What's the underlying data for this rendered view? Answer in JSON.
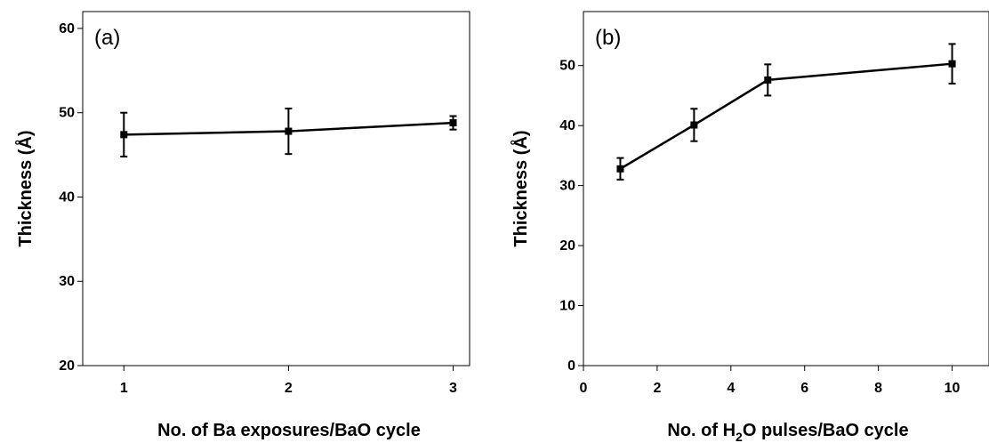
{
  "chart_data": [
    {
      "type": "line",
      "panel_label": "(a)",
      "xlabel": "No. of Ba exposures/BaO cycle",
      "ylabel": "Thickness (Å)",
      "xlim": [
        0.75,
        3.1
      ],
      "ylim": [
        20,
        62
      ],
      "xticks": [
        1,
        2,
        3
      ],
      "yticks": [
        20,
        30,
        40,
        50,
        60
      ],
      "grid": false,
      "series": [
        {
          "points": [
            {
              "x": 1,
              "y": 47.4,
              "err": 2.6
            },
            {
              "x": 2,
              "y": 47.8,
              "err": 2.7
            },
            {
              "x": 3,
              "y": 48.8,
              "err": 0.8
            }
          ]
        }
      ]
    },
    {
      "type": "line",
      "panel_label": "(b)",
      "xlabel_parts": [
        "No. of H",
        "2",
        "O pulses/BaO cycle"
      ],
      "ylabel": "Thickness (Å)",
      "xlim": [
        0,
        11
      ],
      "ylim": [
        0,
        59
      ],
      "xticks": [
        0,
        2,
        4,
        6,
        8,
        10
      ],
      "yticks": [
        0,
        10,
        20,
        30,
        40,
        50
      ],
      "grid": false,
      "series": [
        {
          "points": [
            {
              "x": 1,
              "y": 32.8,
              "err": 1.8
            },
            {
              "x": 3,
              "y": 40.1,
              "err": 2.7
            },
            {
              "x": 5,
              "y": 47.6,
              "err": 2.6
            },
            {
              "x": 10,
              "y": 50.3,
              "err": 3.3
            }
          ]
        }
      ]
    }
  ]
}
